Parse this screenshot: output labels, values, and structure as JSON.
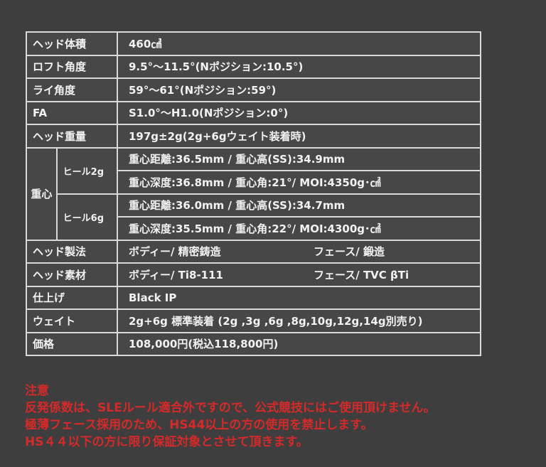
{
  "spec_rows_top": [
    {
      "label": "ヘッド体積",
      "value": "460㎤"
    },
    {
      "label": "ロフト角度",
      "value": "9.5°〜11.5°(Nポジション:10.5°)"
    },
    {
      "label": "ライ角度",
      "value": "59°〜61°(Nポジション:59°)"
    },
    {
      "label": "FA",
      "value": "S1.0°〜H1.0(Nポジション:0°)"
    },
    {
      "label": "ヘッド重量",
      "value": "197g±2g(2g+6gウェイト装着時)"
    }
  ],
  "center_of_gravity": {
    "label": "重心",
    "groups": [
      {
        "label": "ヒール2g",
        "lines": [
          "重心距離:36.5mm / 重心高(SS):34.9mm",
          "重心深度:36.8mm / 重心角:21°/ MOI:4350g･㎠"
        ]
      },
      {
        "label": "ヒール6g",
        "lines": [
          "重心距離:36.0mm / 重心高(SS):34.7mm",
          "重心深度:35.5mm / 重心角:22°/ MOI:4300g･㎠"
        ]
      }
    ]
  },
  "spec_rows_bottom": [
    {
      "label": "ヘッド製法",
      "value": "ボディー/ 精密鋳造",
      "value2": "フェース/ 鍛造"
    },
    {
      "label": "ヘッド素材",
      "value": "ボディー/ Ti8-111",
      "value2": "フェース/ TVC βTi"
    },
    {
      "label": "仕上げ",
      "value": "Black IP"
    },
    {
      "label": "ウェイト",
      "value": "2g+6g 標準装着 (2g ,3g ,6g ,8g,10g,12g,14g別売り)"
    },
    {
      "label": "価格",
      "value": "108,000円(税込118,800円)"
    }
  ],
  "notes": {
    "title": "注意",
    "lines": [
      "反発係数は、SLEルール適合外ですので、公式競技にはご使用頂けません。",
      "極薄フェース採用のため、HS44以上の方の使用を禁止します。",
      "HS４４以下の方に限り保証対象とさせて頂きます。"
    ],
    "color": "#d42a2a"
  }
}
